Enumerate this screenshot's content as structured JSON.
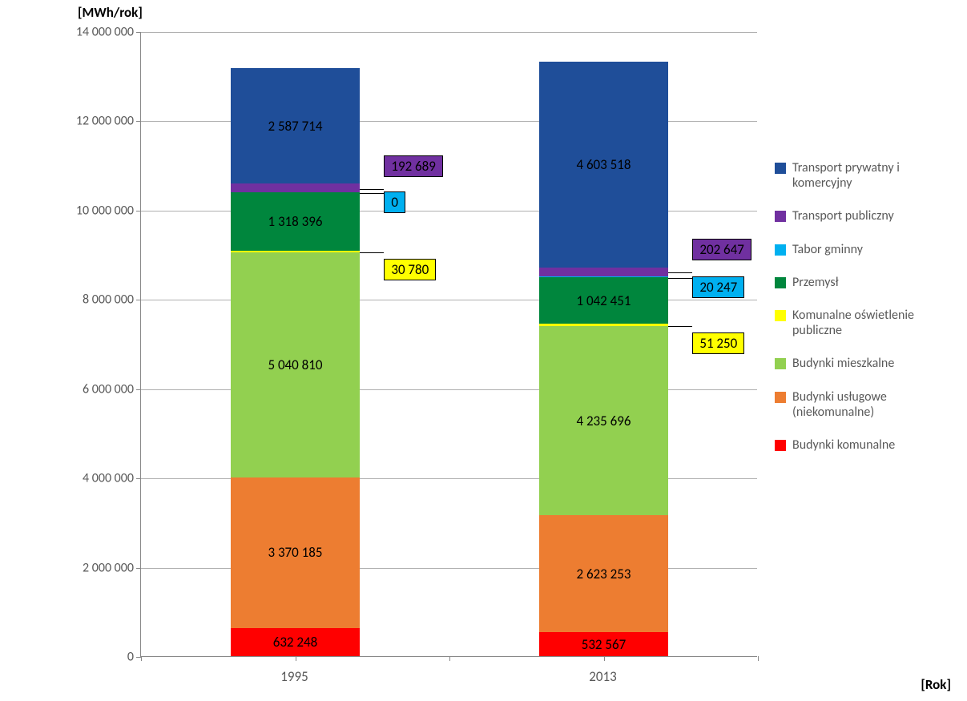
{
  "chart": {
    "type": "stacked-bar",
    "y_axis_title": "[MWh/rok]",
    "x_axis_title": "[Rok]",
    "y_axis_title_fontsize": 17,
    "x_axis_title_fontsize": 17,
    "background_color": "#ffffff",
    "grid_color": "#b0b0b0",
    "axis_color": "#888888",
    "tick_label_color": "#595959",
    "tick_label_fontsize": 16,
    "segment_label_fontsize": 17,
    "legend_label_fontsize": 16,
    "ylim": [
      0,
      14000000
    ],
    "ytick_step": 2000000,
    "y_ticks": [
      {
        "value": 0,
        "label": "0"
      },
      {
        "value": 2000000,
        "label": "2 000 000"
      },
      {
        "value": 4000000,
        "label": "4 000 000"
      },
      {
        "value": 6000000,
        "label": "6 000 000"
      },
      {
        "value": 8000000,
        "label": "8 000 000"
      },
      {
        "value": 10000000,
        "label": "10 000 000"
      },
      {
        "value": 12000000,
        "label": "12 000 000"
      },
      {
        "value": 14000000,
        "label": "14 000 000"
      }
    ],
    "categories": [
      "1995",
      "2013"
    ],
    "bar_width_ratio": 0.42,
    "series": [
      {
        "key": "budynki_komunalne",
        "label": "Budynki  komunalne",
        "color": "#ff0000"
      },
      {
        "key": "budynki_uslugowe",
        "label": "Budynki usługowe (niekomunalne)",
        "color": "#ed7d31"
      },
      {
        "key": "budynki_mieszkalne",
        "label": "Budynki mieszkalne",
        "color": "#92d050"
      },
      {
        "key": "oswietlenie",
        "label": "Komunalne oświetlenie publiczne",
        "color": "#ffff00"
      },
      {
        "key": "przemysl",
        "label": "Przemysł",
        "color": "#00863d"
      },
      {
        "key": "tabor_gminny",
        "label": "Tabor gminny",
        "color": "#00b0f0"
      },
      {
        "key": "transport_publiczny",
        "label": "Transport publiczny",
        "color": "#7030a0"
      },
      {
        "key": "transport_prywatny",
        "label": "Transport prywatny i komercyjny",
        "color": "#1f4e99"
      }
    ],
    "data": {
      "1995": {
        "budynki_komunalne": {
          "value": 632248,
          "label": "632 248",
          "inline": true
        },
        "budynki_uslugowe": {
          "value": 3370185,
          "label": "3 370 185",
          "inline": true
        },
        "budynki_mieszkalne": {
          "value": 5040810,
          "label": "5 040 810",
          "inline": true
        },
        "oswietlenie": {
          "value": 30780,
          "label": "30 780",
          "inline": false
        },
        "przemysl": {
          "value": 1318396,
          "label": "1 318 396",
          "inline": true
        },
        "tabor_gminny": {
          "value": 0,
          "label": "0",
          "inline": false
        },
        "transport_publiczny": {
          "value": 192689,
          "label": "192 689",
          "inline": false
        },
        "transport_prywatny": {
          "value": 2587714,
          "label": "2 587 714",
          "inline": true
        }
      },
      "2013": {
        "budynki_komunalne": {
          "value": 532567,
          "label": "532 567",
          "inline": true
        },
        "budynki_uslugowe": {
          "value": 2623253,
          "label": "2 623 253",
          "inline": true
        },
        "budynki_mieszkalne": {
          "value": 4235696,
          "label": "4 235 696",
          "inline": true
        },
        "oswietlenie": {
          "value": 51250,
          "label": "51 250",
          "inline": false
        },
        "przemysl": {
          "value": 1042451,
          "label": "1 042 451",
          "inline": true
        },
        "tabor_gminny": {
          "value": 20247,
          "label": "20 247",
          "inline": false
        },
        "transport_publiczny": {
          "value": 202647,
          "label": "202 647",
          "inline": false
        },
        "transport_prywatny": {
          "value": 4603518,
          "label": "4 603 518",
          "inline": true
        }
      }
    }
  }
}
